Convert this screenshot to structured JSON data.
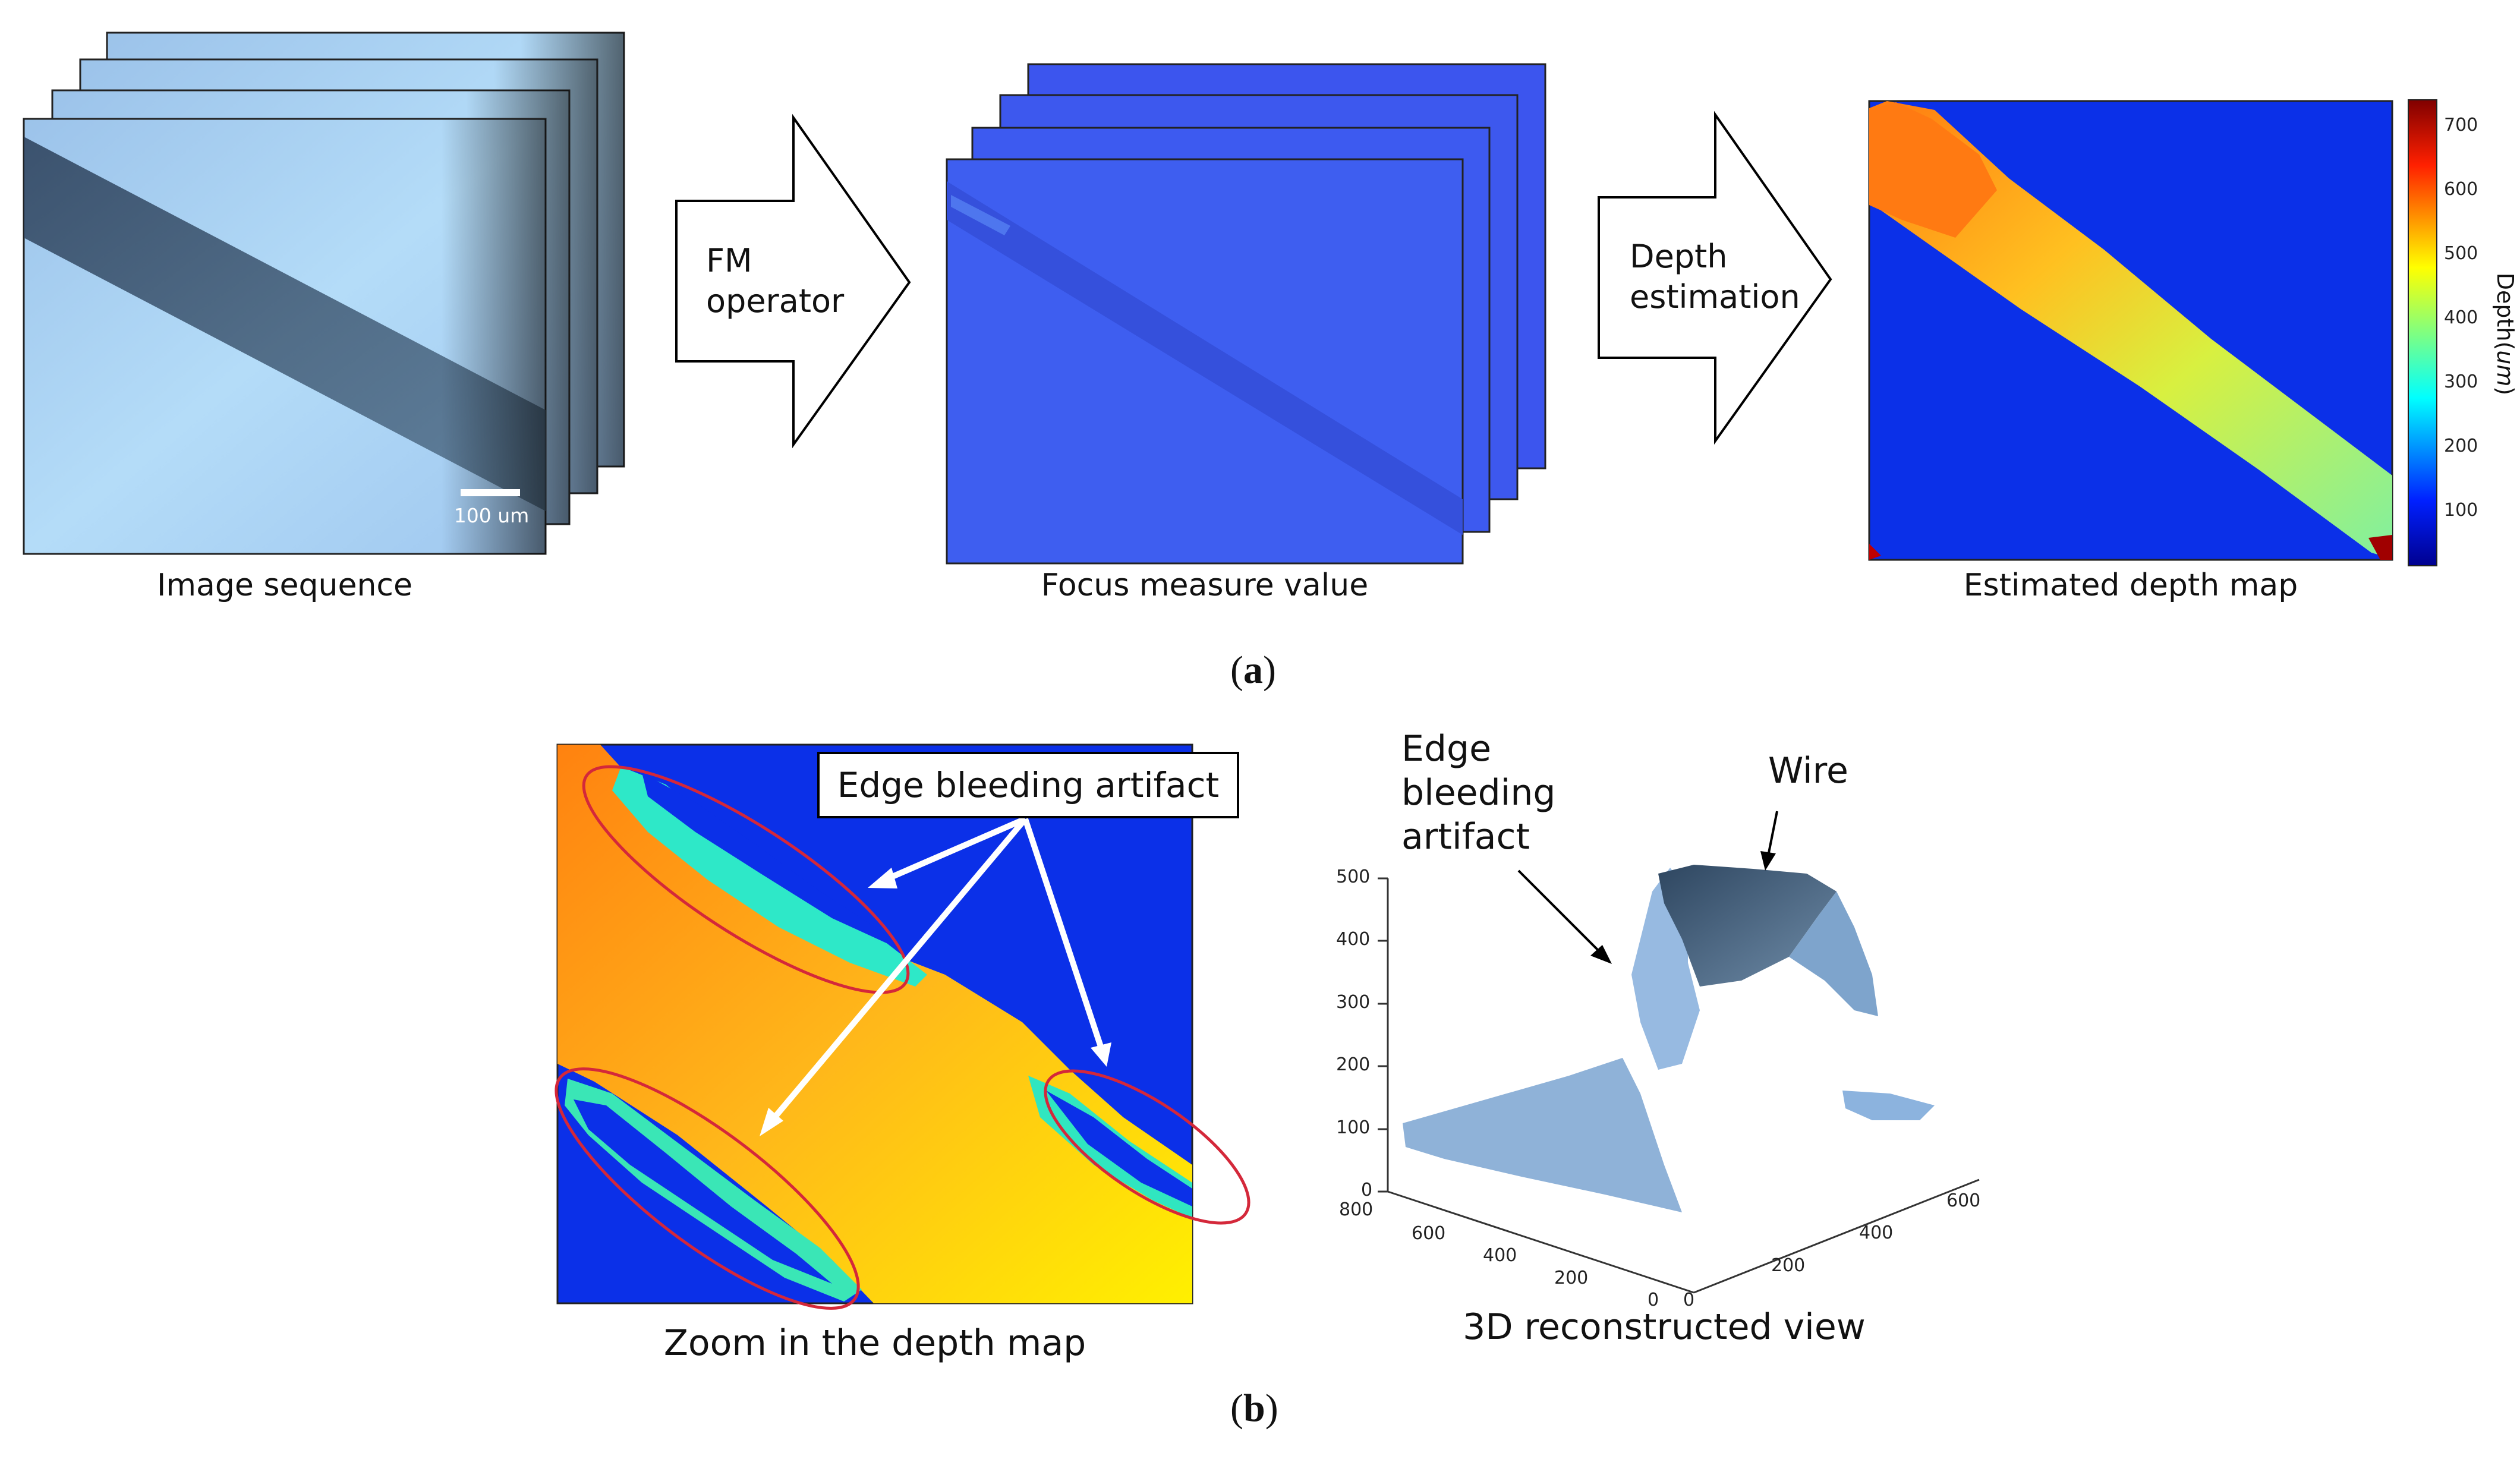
{
  "panel_a": {
    "label": "a",
    "image_sequence": {
      "caption": "Image sequence",
      "scale_bar": "100 um"
    },
    "arrow1": {
      "line1": "FM",
      "line2": "operator"
    },
    "focus_measure": {
      "caption": "Focus measure value"
    },
    "arrow2": {
      "line1": "Depth",
      "line2": "estimation"
    },
    "depth_map": {
      "caption": "Estimated depth map",
      "colorbar_label": "Depth(",
      "colorbar_unit": "um",
      "colorbar_close": ")",
      "colorbar_ticks": [
        "700",
        "600",
        "500",
        "400",
        "300",
        "200",
        "100"
      ]
    }
  },
  "panel_b": {
    "label": "b",
    "zoom": {
      "caption": "Zoom in the depth map",
      "callout": "Edge bleeding artifact"
    },
    "recon": {
      "caption": "3D reconstructed view",
      "anno_edge_1": "Edge",
      "anno_edge_2": "bleeding",
      "anno_edge_3": "artifact",
      "anno_wire": "Wire",
      "z_ticks": [
        "500",
        "400",
        "300",
        "200",
        "100",
        "0"
      ],
      "x_ticks": [
        "800",
        "600",
        "400",
        "200",
        "0"
      ],
      "y_ticks": [
        "0",
        "200",
        "400",
        "600"
      ]
    }
  },
  "colors": {
    "jet_low": "#0b2fe0",
    "jet_high": "#a00000",
    "microscope_bg": "#a6cdf2",
    "fm_bg": "#3d5ef0",
    "ellipse": "#d4283a"
  }
}
